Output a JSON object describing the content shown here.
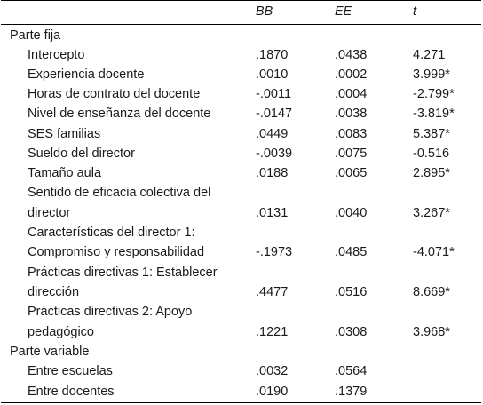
{
  "header": {
    "col1": "BB",
    "col2": "EE",
    "col3": "t"
  },
  "sections": {
    "fixed": "Parte fija",
    "variable": "Parte variable"
  },
  "rows": [
    {
      "label": "Intercepto",
      "bb": ".1870",
      "ee": ".0438",
      "t": "4.271"
    },
    {
      "label": "Experiencia docente",
      "bb": ".0010",
      "ee": ".0002",
      "t": "3.999*"
    },
    {
      "label": "Horas de contrato del docente",
      "bb": "-.0011",
      "ee": ".0004",
      "t": "-2.799*"
    },
    {
      "label": "Nivel de enseñanza del docente",
      "bb": "-.0147",
      "ee": ".0038",
      "t": "-3.819*"
    },
    {
      "label": "SES familias",
      "bb": ".0449",
      "ee": ".0083",
      "t": "5.387*"
    },
    {
      "label": "Sueldo del director",
      "bb": "-.0039",
      "ee": ".0075",
      "t": "-0.516"
    },
    {
      "label": "Tamaño aula",
      "bb": ".0188",
      "ee": ".0065",
      "t": "2.895*"
    },
    {
      "label_line1": "Sentido de eficacia colectiva del",
      "label_line2": "director",
      "bb": ".0131",
      "ee": ".0040",
      "t": "3.267*"
    },
    {
      "label_line1": "Características del director 1:",
      "label_line2": "Compromiso y responsabilidad",
      "bb": "-.1973",
      "ee": ".0485",
      "t": "-4.071*"
    },
    {
      "label_line1": "Prácticas directivas 1: Establecer",
      "label_line2": "dirección",
      "bb": ".4477",
      "ee": ".0516",
      "t": "8.669*"
    },
    {
      "label_line1": "Prácticas directivas 2: Apoyo",
      "label_line2": "pedagógico",
      "bb": ".1221",
      "ee": ".0308",
      "t": "3.968*"
    }
  ],
  "variable_rows": [
    {
      "label": "Entre escuelas",
      "bb": ".0032",
      "ee": ".0564"
    },
    {
      "label": "Entre docentes",
      "bb": ".0190",
      "ee": ".1379"
    }
  ]
}
